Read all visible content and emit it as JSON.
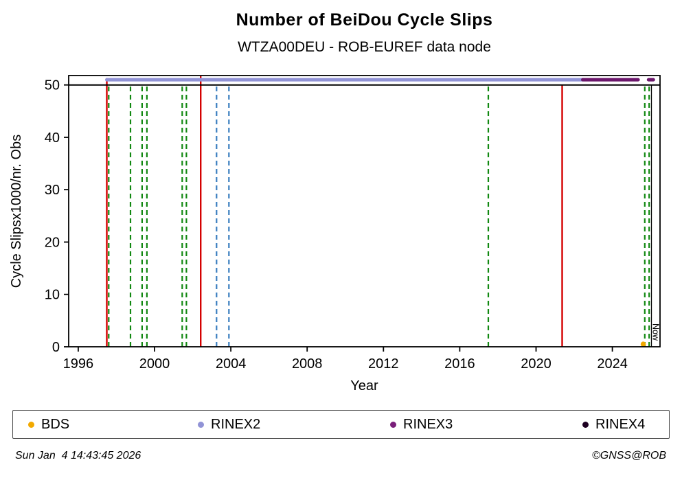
{
  "chart_data": {
    "type": "scatter",
    "title": "Number of BeiDou Cycle Slips",
    "subtitle": "WTZA00DEU - ROB-EUREF data node",
    "xlabel": "Year",
    "ylabel": "Cycle Slipsx1000/nr. Obs",
    "xlim": [
      1995.5,
      2026.5
    ],
    "ylim": [
      0,
      51.8
    ],
    "xticks": [
      1996,
      2000,
      2004,
      2008,
      2012,
      2016,
      2020,
      2024
    ],
    "yticks": [
      0,
      10,
      20,
      30,
      40,
      50
    ],
    "threshold_y": 50,
    "series": [
      {
        "name": "BDS",
        "color": "#f2a900",
        "points": [
          [
            2025.62,
            0.5
          ]
        ]
      },
      {
        "name": "RINEX2",
        "color": "#9193d6",
        "y": 51,
        "segments": [
          [
            1997.5,
            2022.45
          ]
        ]
      },
      {
        "name": "RINEX3",
        "color": "#6b166b",
        "y": 51,
        "segments": [
          [
            2022.45,
            2025.35
          ],
          [
            2025.9,
            2026.15
          ]
        ]
      }
    ],
    "events": [
      {
        "x": 1997.5,
        "color": "#d40000",
        "style": "solid",
        "top": 51.3
      },
      {
        "x": 1997.6,
        "color": "#118811",
        "style": "dashed",
        "top": 50
      },
      {
        "x": 1998.74,
        "color": "#118811",
        "style": "dashed",
        "top": 50
      },
      {
        "x": 1999.35,
        "color": "#118811",
        "style": "dashed",
        "top": 50
      },
      {
        "x": 1999.6,
        "color": "#118811",
        "style": "dashed",
        "top": 50
      },
      {
        "x": 2001.45,
        "color": "#118811",
        "style": "dashed",
        "top": 50
      },
      {
        "x": 2001.67,
        "color": "#118811",
        "style": "dashed",
        "top": 50
      },
      {
        "x": 2002.42,
        "color": "#d40000",
        "style": "solid",
        "top": 51.7
      },
      {
        "x": 2003.25,
        "color": "#3a7ebf",
        "style": "dashed",
        "top": 50
      },
      {
        "x": 2003.9,
        "color": "#3a7ebf",
        "style": "dashed",
        "top": 50
      },
      {
        "x": 2017.5,
        "color": "#118811",
        "style": "dashed",
        "top": 50
      },
      {
        "x": 2021.37,
        "color": "#d40000",
        "style": "solid",
        "top": 50
      },
      {
        "x": 2025.7,
        "color": "#118811",
        "style": "dashed",
        "top": 50
      },
      {
        "x": 2025.93,
        "color": "#118811",
        "style": "dashed",
        "top": 50
      }
    ],
    "now_marker": {
      "x": 2026.05,
      "label": "Now"
    },
    "legend": {
      "items": [
        {
          "label": "BDS",
          "color": "#f2a900"
        },
        {
          "label": "RINEX2",
          "color": "#9193d6"
        },
        {
          "label": "RINEX3",
          "color": "#7a1f7a"
        },
        {
          "label": "RINEX4",
          "color": "#1e0022"
        }
      ]
    }
  },
  "footer": {
    "timestamp": "Sun Jan  4 14:43:45 2026",
    "credit": "©GNSS@ROB"
  }
}
